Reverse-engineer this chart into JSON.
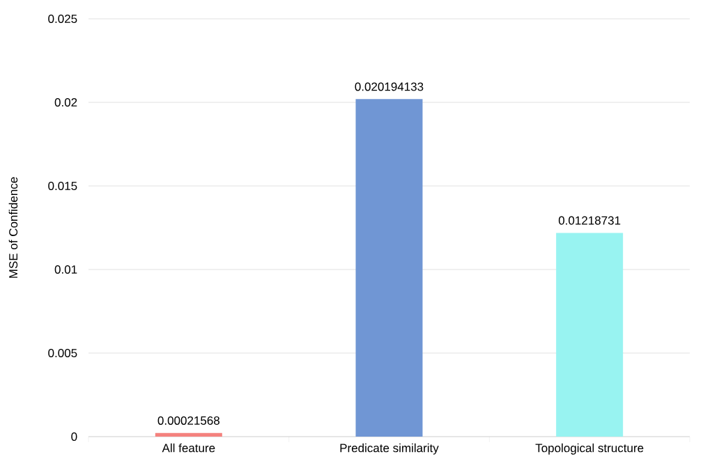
{
  "chart_data": {
    "type": "bar",
    "ylabel": "MSE of Confidence",
    "categories": [
      "All feature",
      "Predicate similarity",
      "Topological structure"
    ],
    "values": [
      0.00021568,
      0.020194133,
      0.01218731
    ],
    "colors": [
      "#f4827e",
      "#7096d4",
      "#98f3f1"
    ],
    "ylim": [
      0,
      0.025
    ],
    "yticks": [
      0,
      0.005,
      0.01,
      0.015,
      0.02,
      0.025
    ],
    "grid": "y",
    "data_labels": true
  }
}
